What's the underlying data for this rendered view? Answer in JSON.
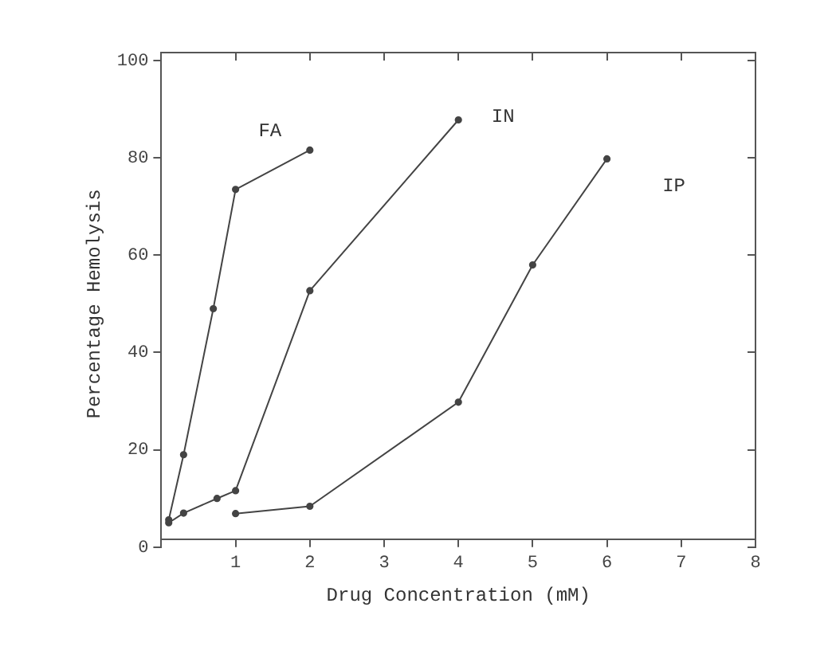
{
  "chart_data": {
    "type": "line",
    "xlabel": "Drug Concentration (mM)",
    "ylabel": "Percentage Hemolysis",
    "xlim": [
      0,
      8
    ],
    "xticks": [
      {
        "value": 0,
        "label": null
      },
      1,
      2,
      3,
      4,
      5,
      6,
      7,
      8
    ],
    "ylim": [
      0,
      100
    ],
    "yticks": [
      0,
      20,
      40,
      60,
      80,
      100
    ],
    "grid": false,
    "legend": false,
    "marker": "circle",
    "line_style": "solid",
    "series": [
      {
        "name": "FA",
        "color": "#444444",
        "x": [
          0.1,
          0.3,
          0.7,
          1,
          2
        ],
        "values": [
          5.6,
          19,
          49,
          73.5,
          81.6
        ]
      },
      {
        "name": "IN",
        "color": "#444444",
        "x": [
          0.1,
          0.3,
          0.75,
          1,
          2,
          4
        ],
        "values": [
          5,
          7,
          10,
          11.6,
          52.7,
          87.8
        ]
      },
      {
        "name": "IP",
        "color": "#444444",
        "x": [
          1,
          2,
          4,
          5,
          6
        ],
        "values": [
          6.9,
          8.4,
          29.8,
          58,
          79.8
        ]
      }
    ]
  }
}
